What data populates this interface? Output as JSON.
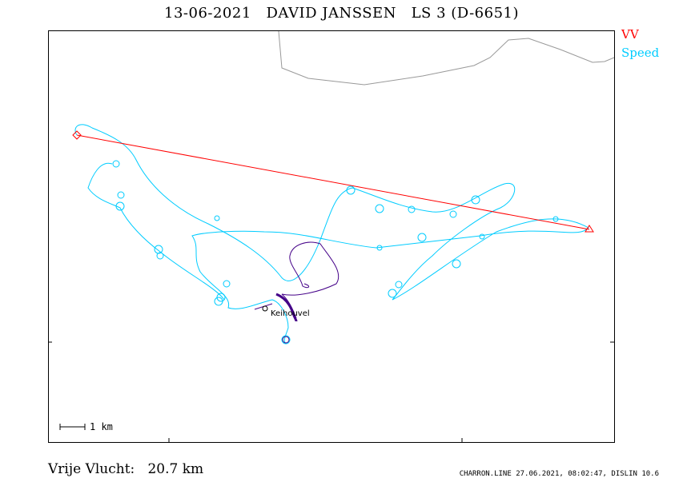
{
  "header": {
    "title": "13-06-2021   DAVID JANSSEN   LS 3 (D-6651)"
  },
  "legend": {
    "vv_label": "VV",
    "vv_color": "#ff0000",
    "speed_label": "Speed",
    "speed_color": "#00ccff"
  },
  "map": {
    "scale_label": "1 km",
    "place_label": "Keihouvel",
    "coastline_color": "#999999",
    "track_color": "#00ccff",
    "start_track_color": "#440088"
  },
  "footer": {
    "result": "Vrije Vlucht:   20.7 km",
    "credits": "CHARRON.LINE 27.06.2021, 08:02:47, DISLIN 10.6"
  }
}
